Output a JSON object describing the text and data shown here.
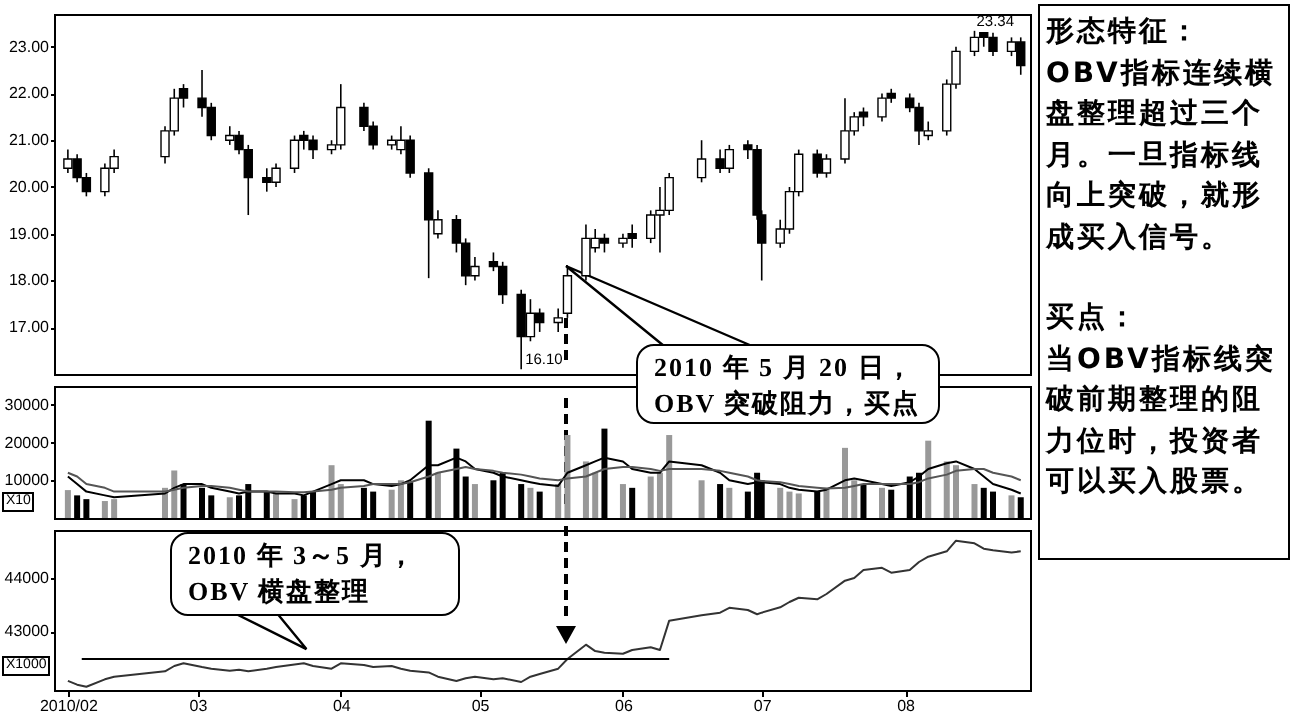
{
  "chart_data": [
    {
      "type": "candlestick",
      "x": [
        "2010-02-01",
        "2010-02-03",
        "2010-02-05",
        "2010-02-09",
        "2010-02-11",
        "2010-02-22",
        "2010-02-24",
        "2010-02-26",
        "2010-03-02",
        "2010-03-04",
        "2010-03-08",
        "2010-03-10",
        "2010-03-12",
        "2010-03-16",
        "2010-03-18",
        "2010-03-22",
        "2010-03-24",
        "2010-03-26",
        "2010-03-30",
        "2010-04-01",
        "2010-04-06",
        "2010-04-08",
        "2010-04-12",
        "2010-04-14",
        "2010-04-16",
        "2010-04-20",
        "2010-04-22",
        "2010-04-26",
        "2010-04-28",
        "2010-04-30",
        "2010-05-04",
        "2010-05-06",
        "2010-05-10",
        "2010-05-12",
        "2010-05-14",
        "2010-05-18",
        "2010-05-20",
        "2010-05-24",
        "2010-05-26",
        "2010-05-28",
        "2010-06-01",
        "2010-06-03",
        "2010-06-07",
        "2010-06-09",
        "2010-06-11",
        "2010-06-18",
        "2010-06-22",
        "2010-06-24",
        "2010-06-28",
        "2010-06-30",
        "2010-07-01",
        "2010-07-05",
        "2010-07-07",
        "2010-07-09",
        "2010-07-13",
        "2010-07-15",
        "2010-07-19",
        "2010-07-21",
        "2010-07-23",
        "2010-07-27",
        "2010-07-29",
        "2010-08-02",
        "2010-08-04",
        "2010-08-06",
        "2010-08-10",
        "2010-08-12",
        "2010-08-16",
        "2010-08-18",
        "2010-08-20",
        "2010-08-24",
        "2010-08-26"
      ],
      "ohlc": [
        [
          20.4,
          20.8,
          20.3,
          20.6
        ],
        [
          20.6,
          20.7,
          20.1,
          20.2
        ],
        [
          20.2,
          20.3,
          19.8,
          19.9
        ],
        [
          19.9,
          20.5,
          19.8,
          20.4
        ],
        [
          20.4,
          20.8,
          20.3,
          20.65
        ],
        [
          20.65,
          21.3,
          20.5,
          21.2
        ],
        [
          21.2,
          22.1,
          21.1,
          21.9
        ],
        [
          22.1,
          22.2,
          21.7,
          21.9
        ],
        [
          21.9,
          22.5,
          21.5,
          21.7
        ],
        [
          21.7,
          21.8,
          21.0,
          21.1
        ],
        [
          21.0,
          21.3,
          20.9,
          21.1
        ],
        [
          21.1,
          21.2,
          20.7,
          20.8
        ],
        [
          20.8,
          20.9,
          19.4,
          20.2
        ],
        [
          20.2,
          20.4,
          19.9,
          20.1
        ],
        [
          20.1,
          20.5,
          20.0,
          20.4
        ],
        [
          20.4,
          21.1,
          20.3,
          21.0
        ],
        [
          21.1,
          21.2,
          20.8,
          21.0
        ],
        [
          21.0,
          21.1,
          20.6,
          20.8
        ],
        [
          20.8,
          21.0,
          20.7,
          20.9
        ],
        [
          20.9,
          22.2,
          20.8,
          21.7
        ],
        [
          21.7,
          21.8,
          21.2,
          21.3
        ],
        [
          21.3,
          21.4,
          20.8,
          20.9
        ],
        [
          20.9,
          21.1,
          20.8,
          21.0
        ],
        [
          20.8,
          21.3,
          20.7,
          21.0
        ],
        [
          21.0,
          21.1,
          20.2,
          20.3
        ],
        [
          20.3,
          20.4,
          18.05,
          19.3
        ],
        [
          19.0,
          19.5,
          18.9,
          19.3
        ],
        [
          19.3,
          19.4,
          18.6,
          18.8
        ],
        [
          18.8,
          18.9,
          17.9,
          18.1
        ],
        [
          18.1,
          18.5,
          18.0,
          18.3
        ],
        [
          18.4,
          18.6,
          18.2,
          18.3
        ],
        [
          18.3,
          18.4,
          17.5,
          17.7
        ],
        [
          17.7,
          17.8,
          16.1,
          16.8
        ],
        [
          16.8,
          17.6,
          16.7,
          17.3
        ],
        [
          17.3,
          17.4,
          16.9,
          17.1
        ],
        [
          17.1,
          17.4,
          16.9,
          17.2
        ],
        [
          17.3,
          18.3,
          17.2,
          18.1
        ],
        [
          18.1,
          19.2,
          18.0,
          18.9
        ],
        [
          18.7,
          19.1,
          18.6,
          18.9
        ],
        [
          18.9,
          19.0,
          18.6,
          18.8
        ],
        [
          18.8,
          19.0,
          18.7,
          18.9
        ],
        [
          19.0,
          19.2,
          18.7,
          18.9
        ],
        [
          18.9,
          19.5,
          18.8,
          19.4
        ],
        [
          19.4,
          20.0,
          18.6,
          19.5
        ],
        [
          19.5,
          20.3,
          19.4,
          20.2
        ],
        [
          20.2,
          21.0,
          20.1,
          20.6
        ],
        [
          20.6,
          20.8,
          20.3,
          20.4
        ],
        [
          20.4,
          20.9,
          20.3,
          20.8
        ],
        [
          20.9,
          21.0,
          20.6,
          20.8
        ],
        [
          20.8,
          20.9,
          19.3,
          19.4
        ],
        [
          19.4,
          19.5,
          18.0,
          18.8
        ],
        [
          18.8,
          19.3,
          18.7,
          19.1
        ],
        [
          19.1,
          20.0,
          19.0,
          19.9
        ],
        [
          19.9,
          20.8,
          19.8,
          20.7
        ],
        [
          20.7,
          20.8,
          20.2,
          20.3
        ],
        [
          20.3,
          20.7,
          20.2,
          20.6
        ],
        [
          20.6,
          21.9,
          20.5,
          21.2
        ],
        [
          21.2,
          21.6,
          21.1,
          21.5
        ],
        [
          21.6,
          21.7,
          21.3,
          21.5
        ],
        [
          21.5,
          22.0,
          21.4,
          21.9
        ],
        [
          22.0,
          22.1,
          21.8,
          21.9
        ],
        [
          21.9,
          22.0,
          21.6,
          21.7
        ],
        [
          21.7,
          21.8,
          20.9,
          21.2
        ],
        [
          21.1,
          21.4,
          21.0,
          21.2
        ],
        [
          21.2,
          22.3,
          21.1,
          22.2
        ],
        [
          22.2,
          23.0,
          22.1,
          22.9
        ],
        [
          22.9,
          23.34,
          22.8,
          23.2
        ],
        [
          23.3,
          23.3,
          23.0,
          23.2
        ],
        [
          23.2,
          23.3,
          22.8,
          22.9
        ],
        [
          22.9,
          23.2,
          22.8,
          23.1
        ],
        [
          23.1,
          23.2,
          22.4,
          22.6
        ]
      ],
      "colors": [
        "#ffffff",
        "#000000",
        "#000000",
        "#ffffff",
        "#ffffff",
        "#ffffff",
        "#ffffff",
        "#000000",
        "#000000",
        "#000000",
        "#ffffff",
        "#000000",
        "#000000",
        "#000000",
        "#ffffff",
        "#ffffff",
        "#000000",
        "#000000",
        "#ffffff",
        "#ffffff",
        "#000000",
        "#000000",
        "#ffffff",
        "#ffffff",
        "#000000",
        "#000000",
        "#ffffff",
        "#000000",
        "#000000",
        "#ffffff",
        "#000000",
        "#000000",
        "#000000",
        "#ffffff",
        "#000000",
        "#ffffff",
        "#ffffff",
        "#ffffff",
        "#ffffff",
        "#000000",
        "#ffffff",
        "#000000",
        "#ffffff",
        "#ffffff",
        "#ffffff",
        "#ffffff",
        "#000000",
        "#ffffff",
        "#000000",
        "#000000",
        "#000000",
        "#ffffff",
        "#ffffff",
        "#ffffff",
        "#000000",
        "#ffffff",
        "#ffffff",
        "#ffffff",
        "#000000",
        "#ffffff",
        "#000000",
        "#000000",
        "#000000",
        "#ffffff",
        "#ffffff",
        "#ffffff",
        "#ffffff",
        "#000000",
        "#000000",
        "#ffffff",
        "#000000"
      ],
      "xlim": [
        "2010-01-29",
        "2010-08-28"
      ],
      "ylim": [
        16.0,
        23.7
      ],
      "yticks": [
        {
          "value": 17,
          "label": "17.00"
        },
        {
          "value": 18,
          "label": "18.00"
        },
        {
          "value": 19,
          "label": "19.00"
        },
        {
          "value": 20,
          "label": "20.00"
        },
        {
          "value": 21,
          "label": "21.00"
        },
        {
          "value": 22,
          "label": "22.00"
        },
        {
          "value": 23,
          "label": "23.00"
        }
      ],
      "tick_labels": "y",
      "annotations": [
        {
          "text": "16.10",
          "x": "2010-05-10",
          "y": 16.1
        },
        {
          "text": "23.34",
          "x": "2010-08-16",
          "y": 23.34
        },
        "2010 年 5 月 20 日，\nOBV 突破阻力，买点"
      ]
    },
    {
      "type": "bar",
      "x": [
        "2010-02-01",
        "2010-02-03",
        "2010-02-05",
        "2010-02-09",
        "2010-02-11",
        "2010-02-22",
        "2010-02-24",
        "2010-02-26",
        "2010-03-02",
        "2010-03-04",
        "2010-03-08",
        "2010-03-10",
        "2010-03-12",
        "2010-03-16",
        "2010-03-18",
        "2010-03-22",
        "2010-03-24",
        "2010-03-26",
        "2010-03-30",
        "2010-04-01",
        "2010-04-06",
        "2010-04-08",
        "2010-04-12",
        "2010-04-14",
        "2010-04-16",
        "2010-04-20",
        "2010-04-22",
        "2010-04-26",
        "2010-04-28",
        "2010-04-30",
        "2010-05-04",
        "2010-05-06",
        "2010-05-10",
        "2010-05-12",
        "2010-05-14",
        "2010-05-18",
        "2010-05-20",
        "2010-05-24",
        "2010-05-26",
        "2010-05-28",
        "2010-06-01",
        "2010-06-03",
        "2010-06-07",
        "2010-06-09",
        "2010-06-11",
        "2010-06-18",
        "2010-06-22",
        "2010-06-24",
        "2010-06-28",
        "2010-06-30",
        "2010-07-01",
        "2010-07-05",
        "2010-07-07",
        "2010-07-09",
        "2010-07-13",
        "2010-07-15",
        "2010-07-19",
        "2010-07-21",
        "2010-07-23",
        "2010-07-27",
        "2010-07-29",
        "2010-08-02",
        "2010-08-04",
        "2010-08-06",
        "2010-08-10",
        "2010-08-12",
        "2010-08-16",
        "2010-08-18",
        "2010-08-20",
        "2010-08-24",
        "2010-08-26"
      ],
      "series": [
        {
          "type": "bar",
          "values": [
            7400,
            6000,
            5000,
            4500,
            5000,
            8000,
            12600,
            9000,
            8000,
            6000,
            5500,
            6000,
            9000,
            7000,
            6500,
            5000,
            6000,
            7000,
            14000,
            9000,
            8000,
            7000,
            7500,
            10000,
            9500,
            25800,
            12000,
            18400,
            11000,
            9000,
            10000,
            12000,
            9000,
            8000,
            7000,
            9000,
            22000,
            15000,
            12000,
            23700,
            9000,
            8000,
            11000,
            12000,
            22000,
            10000,
            9000,
            8000,
            7000,
            12000,
            10000,
            8000,
            7000,
            6500,
            7000,
            8000,
            18600,
            10000,
            9000,
            8000,
            7500,
            11000,
            12000,
            20500,
            15000,
            14000,
            9000,
            8000,
            7000,
            6000,
            5500
          ],
          "colors": [
            "#999999",
            "#000000",
            "#000000",
            "#999999",
            "#999999",
            "#999999",
            "#999999",
            "#000000",
            "#000000",
            "#000000",
            "#999999",
            "#000000",
            "#000000",
            "#000000",
            "#999999",
            "#999999",
            "#000000",
            "#000000",
            "#999999",
            "#999999",
            "#000000",
            "#000000",
            "#999999",
            "#999999",
            "#000000",
            "#000000",
            "#999999",
            "#000000",
            "#000000",
            "#999999",
            "#000000",
            "#000000",
            "#000000",
            "#999999",
            "#000000",
            "#999999",
            "#999999",
            "#999999",
            "#999999",
            "#000000",
            "#999999",
            "#000000",
            "#999999",
            "#999999",
            "#999999",
            "#999999",
            "#000000",
            "#999999",
            "#000000",
            "#000000",
            "#000000",
            "#999999",
            "#999999",
            "#999999",
            "#000000",
            "#999999",
            "#999999",
            "#999999",
            "#000000",
            "#999999",
            "#000000",
            "#000000",
            "#000000",
            "#999999",
            "#999999",
            "#999999",
            "#999999",
            "#000000",
            "#000000",
            "#999999",
            "#000000"
          ]
        },
        {
          "type": "line",
          "color": "#000000",
          "values": [
            11000,
            9000,
            7000,
            6000,
            5500,
            6500,
            8000,
            9000,
            9000,
            8000,
            7000,
            6500,
            7000,
            7000,
            6500,
            6500,
            6000,
            7000,
            9000,
            10000,
            10000,
            9000,
            8500,
            9000,
            10000,
            14000,
            14000,
            16000,
            15000,
            13000,
            12000,
            11000,
            10000,
            9500,
            9000,
            8500,
            12000,
            14000,
            15000,
            16000,
            15000,
            13000,
            12000,
            12000,
            15000,
            14000,
            12000,
            10000,
            9000,
            9500,
            9500,
            9000,
            8000,
            7500,
            7000,
            7500,
            10000,
            10500,
            10000,
            9000,
            8500,
            9500,
            11000,
            13000,
            14500,
            15000,
            13000,
            11000,
            9000,
            7500,
            6500
          ]
        },
        {
          "type": "line",
          "color": "#555555",
          "values": [
            12000,
            11000,
            9000,
            8000,
            7000,
            7000,
            7500,
            8000,
            8500,
            8500,
            8000,
            7500,
            7000,
            7000,
            7000,
            6800,
            6800,
            7000,
            7500,
            8000,
            8500,
            9000,
            9000,
            9000,
            9500,
            11000,
            12000,
            13000,
            13500,
            13000,
            12500,
            12000,
            11500,
            11000,
            10500,
            10000,
            10500,
            11000,
            12000,
            13000,
            13500,
            13500,
            13000,
            12500,
            13000,
            13000,
            12500,
            12000,
            11000,
            10000,
            9800,
            9500,
            9000,
            8500,
            8000,
            7800,
            8000,
            8500,
            9000,
            9000,
            9000,
            9000,
            9500,
            10500,
            11500,
            12500,
            13000,
            13000,
            12000,
            11000,
            10000
          ]
        }
      ],
      "xlim": [
        "2010-01-29",
        "2010-08-28"
      ],
      "ylim": [
        0,
        35000
      ],
      "yticks": [
        10000,
        20000,
        30000
      ],
      "tick_labels": "y",
      "annotations": [
        "X10"
      ]
    },
    {
      "type": "line",
      "x": [
        "2010-02-01",
        "2010-02-03",
        "2010-02-05",
        "2010-02-09",
        "2010-02-11",
        "2010-02-22",
        "2010-02-24",
        "2010-02-26",
        "2010-03-02",
        "2010-03-04",
        "2010-03-08",
        "2010-03-10",
        "2010-03-12",
        "2010-03-16",
        "2010-03-18",
        "2010-03-22",
        "2010-03-24",
        "2010-03-26",
        "2010-03-30",
        "2010-04-01",
        "2010-04-06",
        "2010-04-08",
        "2010-04-12",
        "2010-04-14",
        "2010-04-16",
        "2010-04-20",
        "2010-04-22",
        "2010-04-26",
        "2010-04-28",
        "2010-04-30",
        "2010-05-04",
        "2010-05-06",
        "2010-05-10",
        "2010-05-12",
        "2010-05-14",
        "2010-05-18",
        "2010-05-20",
        "2010-05-24",
        "2010-05-26",
        "2010-05-28",
        "2010-06-01",
        "2010-06-03",
        "2010-06-07",
        "2010-06-09",
        "2010-06-11",
        "2010-06-18",
        "2010-06-22",
        "2010-06-24",
        "2010-06-28",
        "2010-06-30",
        "2010-07-01",
        "2010-07-05",
        "2010-07-07",
        "2010-07-09",
        "2010-07-13",
        "2010-07-15",
        "2010-07-19",
        "2010-07-21",
        "2010-07-23",
        "2010-07-27",
        "2010-07-29",
        "2010-08-02",
        "2010-08-04",
        "2010-08-06",
        "2010-08-10",
        "2010-08-12",
        "2010-08-16",
        "2010-08-18",
        "2010-08-20",
        "2010-08-24",
        "2010-08-26"
      ],
      "series": [
        {
          "color": "#333333",
          "values": [
            42070,
            42000,
            41960,
            42100,
            42150,
            42250,
            42350,
            42400,
            42330,
            42300,
            42260,
            42280,
            42250,
            42300,
            42330,
            42380,
            42400,
            42350,
            42300,
            42400,
            42370,
            42330,
            42350,
            42300,
            42260,
            42230,
            42150,
            42070,
            42120,
            42150,
            42100,
            42120,
            42050,
            42150,
            42200,
            42300,
            42480,
            42750,
            42630,
            42600,
            42580,
            42650,
            42700,
            42650,
            43200,
            43300,
            43350,
            43440,
            43400,
            43320,
            43350,
            43450,
            43550,
            43630,
            43600,
            43700,
            43950,
            44000,
            44150,
            44190,
            44100,
            44150,
            44300,
            44400,
            44500,
            44700,
            44650,
            44550,
            44520,
            44480,
            44500
          ]
        },
        {
          "color": "#000000",
          "x": [
            "2010-02-04",
            "2010-06-11"
          ],
          "values": [
            42480,
            42480
          ]
        }
      ],
      "xlim": [
        "2010-01-29",
        "2010-08-28"
      ],
      "ylim": [
        41900,
        44900
      ],
      "yticks": [
        43000,
        44000
      ],
      "xticks": [
        {
          "value": "2010-02-01",
          "label": "2010/02"
        },
        {
          "value": "2010-03-01",
          "label": "03"
        },
        {
          "value": "2010-04-01",
          "label": "04"
        },
        {
          "value": "2010-05-01",
          "label": "05"
        },
        {
          "value": "2010-06-01",
          "label": "06"
        },
        {
          "value": "2010-07-01",
          "label": "07"
        },
        {
          "value": "2010-08-01",
          "label": "08"
        }
      ],
      "annotations": [
        {
          "text": "2010 年 3～5 月，\nOBV 横盘整理",
          "x": "2010-03-25",
          "y": 42480
        },
        "X1000"
      ]
    },
    {
      "type": "other",
      "annotations": [
        "形态特征：",
        "OBV指标连续横盘整理超过三个月。一旦指标线向上突破，就形成买入信号。",
        "买点：",
        "当OBV指标线突破前期整理的阻力位时，投资者可以买入股票。"
      ]
    }
  ]
}
